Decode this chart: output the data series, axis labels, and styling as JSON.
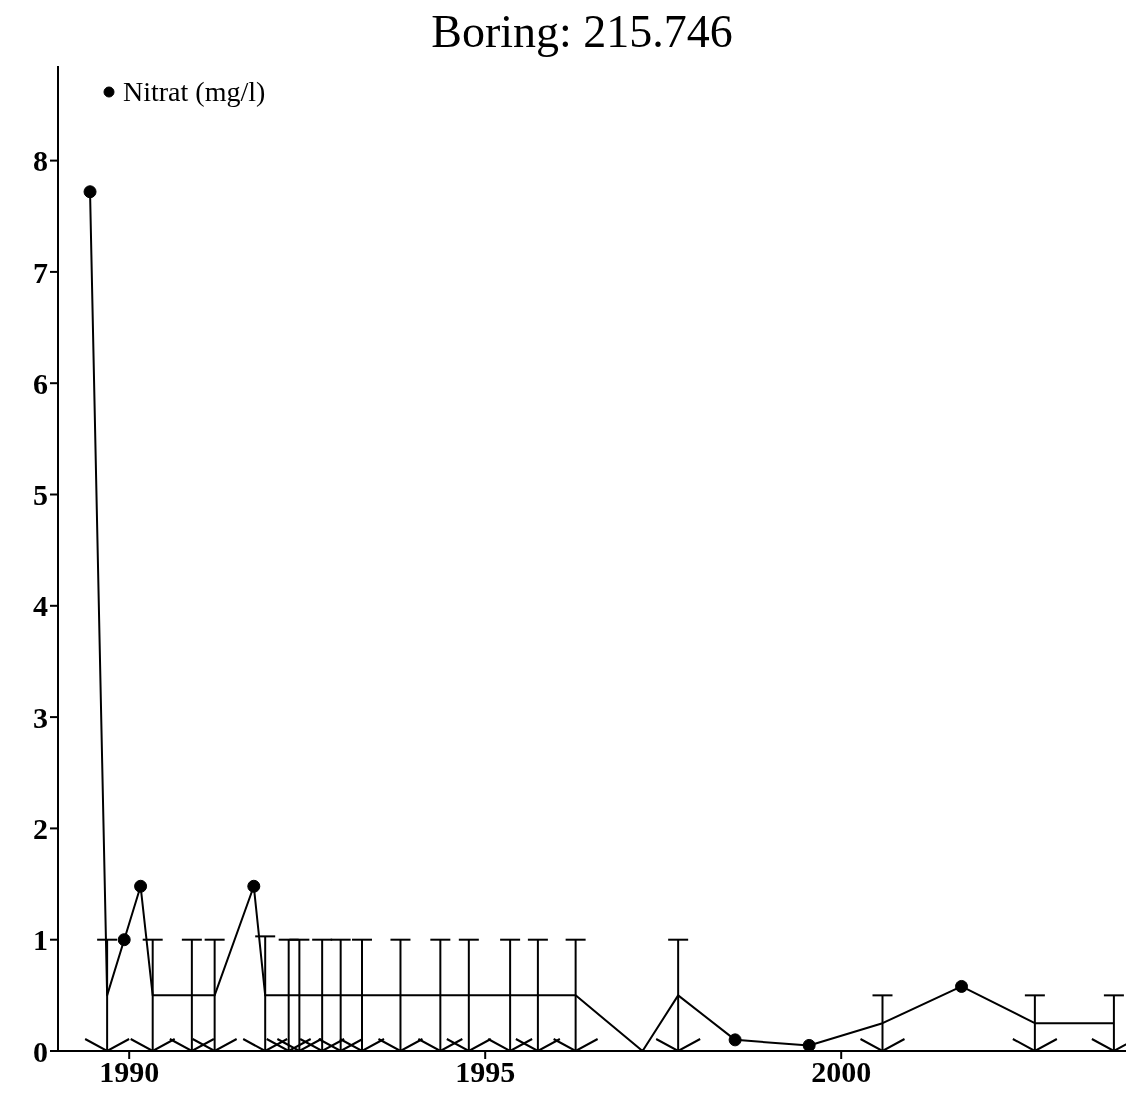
{
  "chart_data": {
    "type": "line",
    "title": "Boring: 215.746",
    "x": [
      1989.45,
      1989.69,
      1989.93,
      1990.16,
      1990.33,
      1990.88,
      1991.2,
      1991.75,
      1991.91,
      1992.24,
      1992.39,
      1992.71,
      1992.97,
      1993.27,
      1993.81,
      1994.37,
      1994.77,
      1995.35,
      1995.74,
      1996.27,
      1997.21,
      1997.71,
      1998.51,
      1999.55,
      2000.58,
      2001.69,
      2002.72,
      2003.83
    ],
    "series": [
      {
        "color": "#000000",
        "marker": "none",
        "values": [
          7.72,
          0.5,
          1.0,
          1.48,
          0.5,
          0.5,
          0.5,
          1.48,
          0.5,
          0.5,
          0.5,
          0.5,
          0.5,
          0.5,
          0.5,
          0.5,
          0.5,
          0.5,
          0.5,
          0.5,
          0,
          0.5,
          0.1,
          0.05,
          0.25,
          0.58,
          0.25,
          0.25
        ],
        "errors": [
          null,
          [
            0,
            1
          ],
          null,
          null,
          [
            0,
            1
          ],
          [
            0,
            1
          ],
          [
            0,
            1
          ],
          null,
          [
            0,
            1.03
          ],
          [
            0,
            1
          ],
          [
            0,
            1
          ],
          [
            0,
            1
          ],
          [
            0,
            1
          ],
          [
            0,
            1
          ],
          [
            0,
            1
          ],
          [
            0,
            1
          ],
          [
            0,
            1
          ],
          [
            0,
            1
          ],
          [
            0,
            1
          ],
          [
            0,
            1
          ],
          null,
          [
            0,
            1
          ],
          null,
          null,
          [
            0,
            0.5
          ],
          null,
          [
            0,
            0.5
          ],
          [
            0,
            0.5
          ]
        ]
      },
      {
        "type": "scatter",
        "name": "Nitrat (mg/l)",
        "color": "#000000",
        "marker": "circle",
        "values": [
          7.72,
          null,
          1.0,
          1.48,
          null,
          null,
          null,
          1.48,
          null,
          null,
          null,
          null,
          null,
          null,
          null,
          null,
          null,
          null,
          null,
          null,
          null,
          null,
          0.1,
          0.05,
          null,
          0.58,
          null,
          null
        ]
      }
    ],
    "xlim": [
      1989,
      2004
    ],
    "xticks": [
      1990,
      1995,
      2000
    ],
    "ylim": [
      0,
      8.85
    ],
    "yticks": [
      0,
      1,
      2,
      3,
      4,
      5,
      6,
      7,
      8
    ],
    "grid": false,
    "legend": "top left",
    "line_style": "solid"
  }
}
